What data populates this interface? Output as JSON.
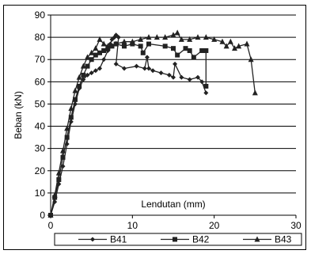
{
  "chart_data": {
    "type": "line",
    "xlabel": "Lendutan (mm)",
    "ylabel": "Beban (kN)",
    "xlim": [
      0,
      30
    ],
    "ylim": [
      0,
      90
    ],
    "xticks": [
      0,
      10,
      20,
      30
    ],
    "yticks": [
      0,
      10,
      20,
      30,
      40,
      50,
      60,
      70,
      80,
      90
    ],
    "grid": "horizontal",
    "legend_position": "bottom",
    "line_color": "#222222",
    "series": [
      {
        "name": "B41",
        "marker": "diamond",
        "x": [
          0,
          0.5,
          1.0,
          1.5,
          2.0,
          2.5,
          3.0,
          3.5,
          4.0,
          4.5,
          5.0,
          5.5,
          6.0,
          6.5,
          7.0,
          7.3,
          7.5,
          7.8,
          8.0,
          8.3,
          8.0,
          9.0,
          10.5,
          11.5,
          11.8,
          12.0,
          12.5,
          13.5,
          14.5,
          15.0,
          15.2,
          16.0,
          17.0,
          18.0,
          18.5,
          19.0
        ],
        "y": [
          0,
          6,
          14,
          22,
          32,
          42,
          50,
          57,
          61,
          63,
          64,
          65,
          66,
          70,
          74,
          77,
          79,
          80,
          81,
          80,
          68,
          66,
          67,
          66,
          71,
          66,
          65,
          64,
          63,
          62,
          68,
          62,
          61,
          62,
          60,
          55
        ]
      },
      {
        "name": "B42",
        "marker": "square",
        "x": [
          0,
          0.5,
          1.0,
          1.5,
          2.0,
          2.5,
          3.0,
          3.5,
          4.0,
          4.5,
          5.0,
          5.5,
          6.0,
          6.5,
          7.0,
          7.5,
          8.0,
          9.0,
          10.0,
          11.0,
          11.3,
          12.0,
          14.0,
          15.0,
          15.5,
          16.5,
          17.0,
          17.5,
          18.5,
          19.0,
          19.0
        ],
        "y": [
          0,
          8,
          16,
          26,
          35,
          44,
          52,
          58,
          63,
          67,
          70,
          72,
          73,
          74,
          75,
          76,
          77,
          76,
          77,
          76,
          73,
          77,
          76,
          75,
          72,
          75,
          74,
          71,
          74,
          74,
          58
        ]
      },
      {
        "name": "B43",
        "marker": "triangle",
        "x": [
          0,
          0.5,
          1.0,
          1.5,
          2.0,
          2.5,
          3.0,
          3.5,
          4.0,
          4.5,
          5.0,
          5.5,
          6.0,
          6.5,
          7.0,
          8.0,
          9.0,
          10.0,
          11.0,
          12.0,
          13.0,
          14.0,
          15.0,
          15.5,
          16.0,
          17.0,
          18.0,
          19.0,
          20.0,
          21.0,
          21.5,
          22.0,
          22.5,
          23.0,
          24.0,
          24.5,
          25.0
        ],
        "y": [
          0,
          9,
          19,
          29,
          39,
          48,
          56,
          62,
          67,
          71,
          73,
          75,
          79,
          77,
          76,
          77,
          78,
          78,
          79,
          80,
          80,
          80,
          81,
          82,
          79,
          79,
          80,
          80,
          79,
          78,
          76,
          78,
          75,
          76,
          77,
          70,
          55
        ]
      }
    ]
  }
}
